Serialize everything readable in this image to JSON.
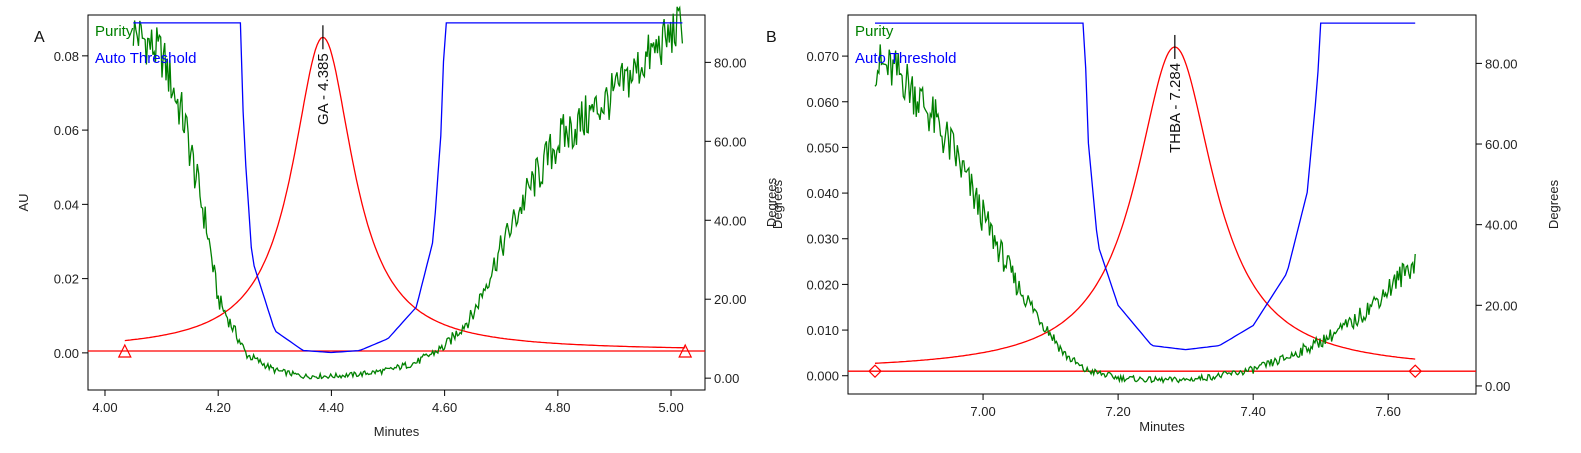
{
  "chart_data": [
    {
      "type": "line",
      "panel_label": "A",
      "xlabel": "Minutes",
      "ylabel_left": "AU",
      "ylabel_right": "Degrees",
      "xlim": [
        3.97,
        5.06
      ],
      "ylim_left": [
        -0.01,
        0.091
      ],
      "ylim_right": [
        -3,
        92
      ],
      "x_ticks": [
        4.0,
        4.2,
        4.4,
        4.6,
        4.8,
        5.0
      ],
      "x_tick_labels": [
        "4.00",
        "4.20",
        "4.40",
        "4.60",
        "4.80",
        "5.00"
      ],
      "y_left_ticks": [
        0.0,
        0.02,
        0.04,
        0.06,
        0.08
      ],
      "y_left_tick_labels": [
        "0.00",
        "0.02",
        "0.04",
        "0.06",
        "0.08"
      ],
      "y_right_ticks": [
        0,
        20,
        40,
        60,
        80
      ],
      "y_right_tick_labels": [
        "0.00",
        "20.00",
        "40.00",
        "60.00",
        "80.00"
      ],
      "legend": [
        {
          "label": "Purity",
          "color": "#008000"
        },
        {
          "label": "Auto Threshold",
          "color": "#0000ff"
        }
      ],
      "peak_label": "GA - 4.385",
      "peak": {
        "apex_x": 4.385,
        "apex_au": 0.085,
        "half_width": 0.065
      },
      "baseline": {
        "color": "#ff0000",
        "value_au": 0.0005,
        "markers_x": [
          4.035,
          5.025
        ],
        "marker": "triangle"
      },
      "series": [
        {
          "name": "Purity",
          "axis": "right",
          "color": "#008000",
          "x": [
            4.05,
            4.1,
            4.14,
            4.18,
            4.2,
            4.25,
            4.3,
            4.35,
            4.4,
            4.45,
            4.5,
            4.55,
            4.6,
            4.65,
            4.7,
            4.75,
            4.8,
            4.85,
            4.9,
            4.95,
            5.0,
            5.02
          ],
          "y": [
            88,
            82,
            65,
            38,
            20,
            6,
            2,
            0.5,
            0.5,
            1,
            2,
            4,
            8,
            16,
            33,
            48,
            60,
            66,
            72,
            80,
            87,
            90
          ]
        },
        {
          "name": "Auto Threshold",
          "axis": "right",
          "color": "#0000ff",
          "x": [
            4.05,
            4.24,
            4.245,
            4.26,
            4.3,
            4.35,
            4.4,
            4.45,
            4.5,
            4.55,
            4.58,
            4.595,
            4.6,
            5.02
          ],
          "y": [
            90,
            90,
            62,
            30,
            12,
            7,
            6.5,
            7,
            10,
            18,
            35,
            65,
            90,
            90
          ]
        }
      ]
    },
    {
      "type": "line",
      "panel_label": "B",
      "xlabel": "Minutes",
      "ylabel_left": "Degrees",
      "ylabel_right": "Degrees",
      "xlim": [
        6.8,
        7.73
      ],
      "ylim_left": [
        -0.004,
        0.079
      ],
      "ylim_right": [
        -2,
        92
      ],
      "x_ticks": [
        7.0,
        7.2,
        7.4,
        7.6
      ],
      "x_tick_labels": [
        "7.00",
        "7.20",
        "7.40",
        "7.60"
      ],
      "y_left_ticks": [
        0.0,
        0.01,
        0.02,
        0.03,
        0.04,
        0.05,
        0.06,
        0.07
      ],
      "y_left_tick_labels": [
        "0.000",
        "0.010",
        "0.020",
        "0.030",
        "0.040",
        "0.050",
        "0.060",
        "0.070"
      ],
      "y_right_ticks": [
        0,
        20,
        40,
        60,
        80
      ],
      "y_right_tick_labels": [
        "0.00",
        "20.00",
        "40.00",
        "60.00",
        "80.00"
      ],
      "legend": [
        {
          "label": "Purity",
          "color": "#008000"
        },
        {
          "label": "Auto Threshold",
          "color": "#0000ff"
        }
      ],
      "peak_label": "THBA - 7.284",
      "peak": {
        "apex_x": 7.284,
        "apex_au": 0.072,
        "half_width": 0.07
      },
      "baseline": {
        "color": "#ff0000",
        "value_au": 0.001,
        "markers_x": [
          6.84,
          7.64
        ],
        "marker": "diamond"
      },
      "series": [
        {
          "name": "Purity",
          "axis": "right",
          "color": "#008000",
          "x": [
            6.84,
            6.88,
            6.92,
            6.96,
            7.0,
            7.05,
            7.1,
            7.12,
            7.15,
            7.2,
            7.25,
            7.3,
            7.35,
            7.4,
            7.45,
            7.5,
            7.55,
            7.6,
            7.64
          ],
          "y": [
            80,
            77,
            68,
            57,
            42,
            25,
            13,
            8,
            4,
            2,
            1.5,
            1.5,
            2.5,
            4,
            7,
            11,
            16,
            24,
            31
          ]
        },
        {
          "name": "Auto Threshold",
          "axis": "right",
          "color": "#0000ff",
          "x": [
            6.84,
            7.15,
            7.155,
            7.17,
            7.2,
            7.25,
            7.3,
            7.35,
            7.4,
            7.45,
            7.48,
            7.495,
            7.5,
            7.64
          ],
          "y": [
            90,
            90,
            62,
            35,
            20,
            10,
            9,
            10,
            15,
            28,
            48,
            75,
            90,
            90
          ]
        }
      ]
    }
  ]
}
